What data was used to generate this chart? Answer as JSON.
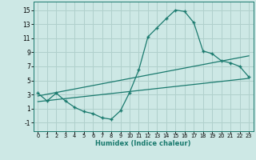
{
  "xlabel": "Humidex (Indice chaleur)",
  "bg_color": "#cde8e5",
  "grid_color": "#b0d0cc",
  "line_color": "#1a7a6e",
  "xlim": [
    -0.5,
    23.5
  ],
  "ylim": [
    -2.2,
    16.2
  ],
  "xticks": [
    0,
    1,
    2,
    3,
    4,
    5,
    6,
    7,
    8,
    9,
    10,
    11,
    12,
    13,
    14,
    15,
    16,
    17,
    18,
    19,
    20,
    21,
    22,
    23
  ],
  "yticks": [
    -1,
    1,
    3,
    5,
    7,
    9,
    11,
    13,
    15
  ],
  "curve1_x": [
    0,
    1,
    2,
    3,
    4,
    5,
    6,
    7,
    8,
    9,
    10,
    11,
    12,
    13,
    14,
    15,
    16,
    17,
    18,
    19,
    20,
    21,
    22,
    23
  ],
  "curve1_y": [
    3.2,
    2.1,
    3.2,
    2.1,
    1.2,
    0.6,
    0.3,
    -0.3,
    -0.5,
    0.7,
    3.3,
    6.5,
    11.2,
    12.5,
    13.8,
    15.0,
    14.8,
    13.2,
    9.2,
    8.8,
    7.8,
    7.5,
    7.0,
    5.5
  ],
  "line2_x": [
    0,
    23
  ],
  "line2_y": [
    2.8,
    8.5
  ],
  "line3_x": [
    0,
    23
  ],
  "line3_y": [
    2.0,
    5.3
  ]
}
